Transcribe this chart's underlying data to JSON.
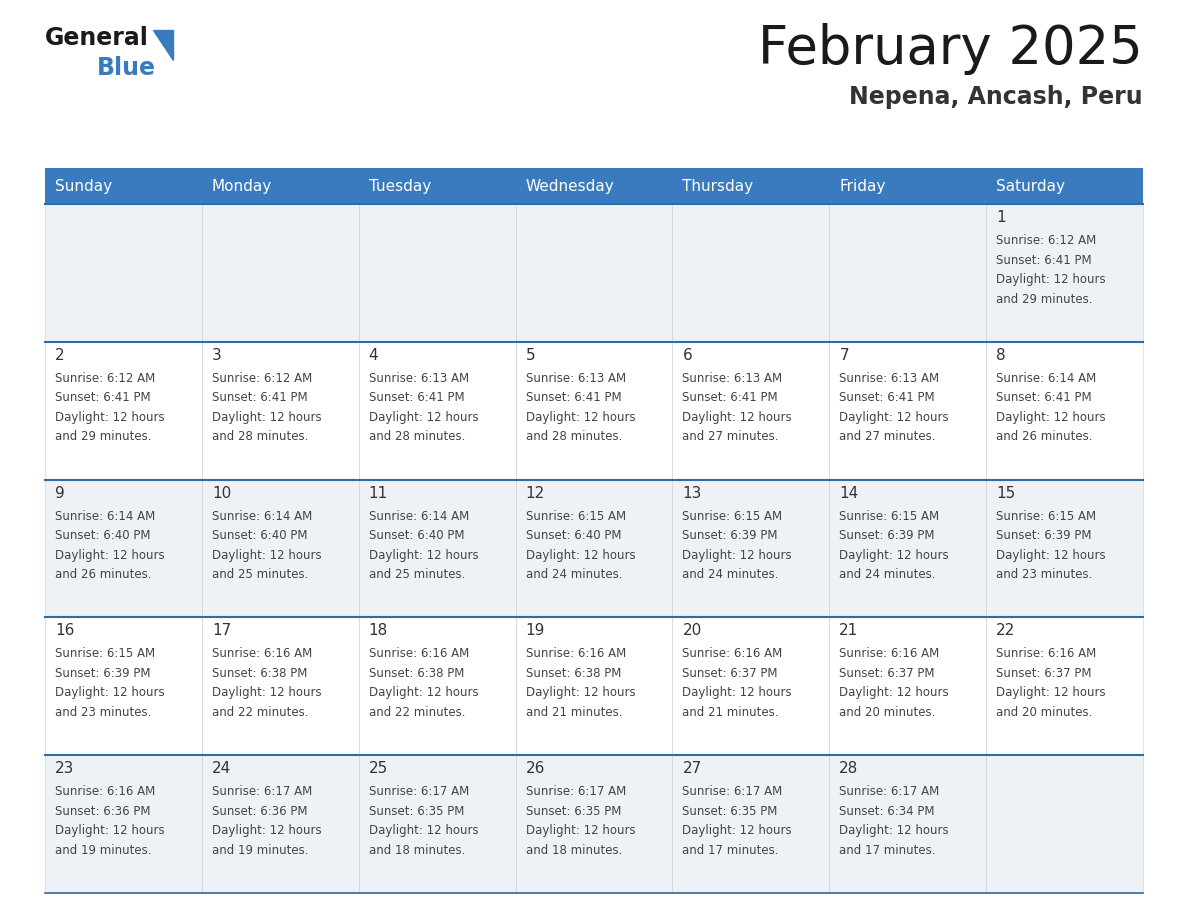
{
  "title": "February 2025",
  "subtitle": "Nepena, Ancash, Peru",
  "header_color": "#3a7bbf",
  "header_text_color": "#ffffff",
  "day_names": [
    "Sunday",
    "Monday",
    "Tuesday",
    "Wednesday",
    "Thursday",
    "Friday",
    "Saturday"
  ],
  "background_color": "#ffffff",
  "cell_bg_light": "#eef2f7",
  "cell_bg_white": "#ffffff",
  "border_color": "#2e6da4",
  "day_number_color": "#333333",
  "text_color": "#444444",
  "calendar_data": [
    [
      null,
      null,
      null,
      null,
      null,
      null,
      {
        "day": 1,
        "sunrise": "6:12 AM",
        "sunset": "6:41 PM",
        "daylight_a": "12 hours",
        "daylight_b": "and 29 minutes."
      }
    ],
    [
      {
        "day": 2,
        "sunrise": "6:12 AM",
        "sunset": "6:41 PM",
        "daylight_a": "12 hours",
        "daylight_b": "and 29 minutes."
      },
      {
        "day": 3,
        "sunrise": "6:12 AM",
        "sunset": "6:41 PM",
        "daylight_a": "12 hours",
        "daylight_b": "and 28 minutes."
      },
      {
        "day": 4,
        "sunrise": "6:13 AM",
        "sunset": "6:41 PM",
        "daylight_a": "12 hours",
        "daylight_b": "and 28 minutes."
      },
      {
        "day": 5,
        "sunrise": "6:13 AM",
        "sunset": "6:41 PM",
        "daylight_a": "12 hours",
        "daylight_b": "and 28 minutes."
      },
      {
        "day": 6,
        "sunrise": "6:13 AM",
        "sunset": "6:41 PM",
        "daylight_a": "12 hours",
        "daylight_b": "and 27 minutes."
      },
      {
        "day": 7,
        "sunrise": "6:13 AM",
        "sunset": "6:41 PM",
        "daylight_a": "12 hours",
        "daylight_b": "and 27 minutes."
      },
      {
        "day": 8,
        "sunrise": "6:14 AM",
        "sunset": "6:41 PM",
        "daylight_a": "12 hours",
        "daylight_b": "and 26 minutes."
      }
    ],
    [
      {
        "day": 9,
        "sunrise": "6:14 AM",
        "sunset": "6:40 PM",
        "daylight_a": "12 hours",
        "daylight_b": "and 26 minutes."
      },
      {
        "day": 10,
        "sunrise": "6:14 AM",
        "sunset": "6:40 PM",
        "daylight_a": "12 hours",
        "daylight_b": "and 25 minutes."
      },
      {
        "day": 11,
        "sunrise": "6:14 AM",
        "sunset": "6:40 PM",
        "daylight_a": "12 hours",
        "daylight_b": "and 25 minutes."
      },
      {
        "day": 12,
        "sunrise": "6:15 AM",
        "sunset": "6:40 PM",
        "daylight_a": "12 hours",
        "daylight_b": "and 24 minutes."
      },
      {
        "day": 13,
        "sunrise": "6:15 AM",
        "sunset": "6:39 PM",
        "daylight_a": "12 hours",
        "daylight_b": "and 24 minutes."
      },
      {
        "day": 14,
        "sunrise": "6:15 AM",
        "sunset": "6:39 PM",
        "daylight_a": "12 hours",
        "daylight_b": "and 24 minutes."
      },
      {
        "day": 15,
        "sunrise": "6:15 AM",
        "sunset": "6:39 PM",
        "daylight_a": "12 hours",
        "daylight_b": "and 23 minutes."
      }
    ],
    [
      {
        "day": 16,
        "sunrise": "6:15 AM",
        "sunset": "6:39 PM",
        "daylight_a": "12 hours",
        "daylight_b": "and 23 minutes."
      },
      {
        "day": 17,
        "sunrise": "6:16 AM",
        "sunset": "6:38 PM",
        "daylight_a": "12 hours",
        "daylight_b": "and 22 minutes."
      },
      {
        "day": 18,
        "sunrise": "6:16 AM",
        "sunset": "6:38 PM",
        "daylight_a": "12 hours",
        "daylight_b": "and 22 minutes."
      },
      {
        "day": 19,
        "sunrise": "6:16 AM",
        "sunset": "6:38 PM",
        "daylight_a": "12 hours",
        "daylight_b": "and 21 minutes."
      },
      {
        "day": 20,
        "sunrise": "6:16 AM",
        "sunset": "6:37 PM",
        "daylight_a": "12 hours",
        "daylight_b": "and 21 minutes."
      },
      {
        "day": 21,
        "sunrise": "6:16 AM",
        "sunset": "6:37 PM",
        "daylight_a": "12 hours",
        "daylight_b": "and 20 minutes."
      },
      {
        "day": 22,
        "sunrise": "6:16 AM",
        "sunset": "6:37 PM",
        "daylight_a": "12 hours",
        "daylight_b": "and 20 minutes."
      }
    ],
    [
      {
        "day": 23,
        "sunrise": "6:16 AM",
        "sunset": "6:36 PM",
        "daylight_a": "12 hours",
        "daylight_b": "and 19 minutes."
      },
      {
        "day": 24,
        "sunrise": "6:17 AM",
        "sunset": "6:36 PM",
        "daylight_a": "12 hours",
        "daylight_b": "and 19 minutes."
      },
      {
        "day": 25,
        "sunrise": "6:17 AM",
        "sunset": "6:35 PM",
        "daylight_a": "12 hours",
        "daylight_b": "and 18 minutes."
      },
      {
        "day": 26,
        "sunrise": "6:17 AM",
        "sunset": "6:35 PM",
        "daylight_a": "12 hours",
        "daylight_b": "and 18 minutes."
      },
      {
        "day": 27,
        "sunrise": "6:17 AM",
        "sunset": "6:35 PM",
        "daylight_a": "12 hours",
        "daylight_b": "and 17 minutes."
      },
      {
        "day": 28,
        "sunrise": "6:17 AM",
        "sunset": "6:34 PM",
        "daylight_a": "12 hours",
        "daylight_b": "and 17 minutes."
      },
      null
    ]
  ],
  "logo_text_general": "General",
  "logo_text_blue": "Blue",
  "fig_width": 11.88,
  "fig_height": 9.18,
  "dpi": 100
}
